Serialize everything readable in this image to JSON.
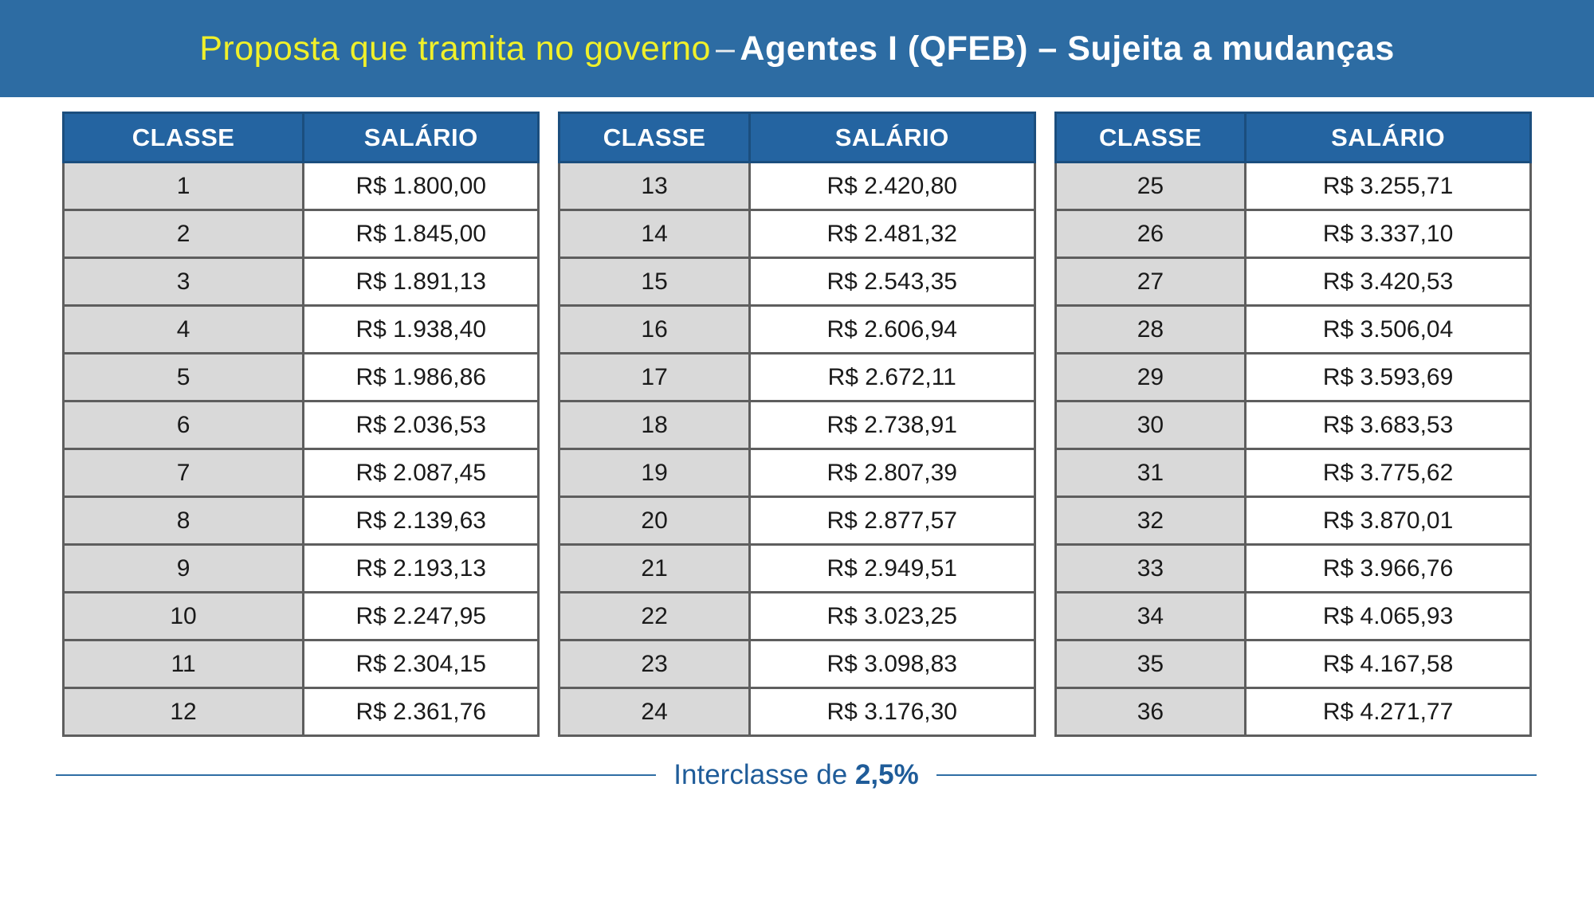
{
  "banner": {
    "title_highlight": "Proposta que tramita no governo",
    "title_dash": "–",
    "title_main": "Agentes I (QFEB) – Sujeita a mudanças",
    "bg_color": "#2D6CA3",
    "highlight_color": "#F0F02A",
    "main_color": "#FFFFFF"
  },
  "tables": [
    {
      "headers": [
        "CLASSE",
        "SALÁRIO"
      ],
      "rows": [
        [
          "1",
          "R$ 1.800,00"
        ],
        [
          "2",
          "R$ 1.845,00"
        ],
        [
          "3",
          "R$ 1.891,13"
        ],
        [
          "4",
          "R$ 1.938,40"
        ],
        [
          "5",
          "R$ 1.986,86"
        ],
        [
          "6",
          "R$ 2.036,53"
        ],
        [
          "7",
          "R$ 2.087,45"
        ],
        [
          "8",
          "R$ 2.139,63"
        ],
        [
          "9",
          "R$ 2.193,13"
        ],
        [
          "10",
          "R$ 2.247,95"
        ],
        [
          "11",
          "R$ 2.304,15"
        ],
        [
          "12",
          "R$ 2.361,76"
        ]
      ]
    },
    {
      "headers": [
        "CLASSE",
        "SALÁRIO"
      ],
      "rows": [
        [
          "13",
          "R$ 2.420,80"
        ],
        [
          "14",
          "R$ 2.481,32"
        ],
        [
          "15",
          "R$ 2.543,35"
        ],
        [
          "16",
          "R$ 2.606,94"
        ],
        [
          "17",
          "R$ 2.672,11"
        ],
        [
          "18",
          "R$ 2.738,91"
        ],
        [
          "19",
          "R$ 2.807,39"
        ],
        [
          "20",
          "R$ 2.877,57"
        ],
        [
          "21",
          "R$ 2.949,51"
        ],
        [
          "22",
          "R$ 3.023,25"
        ],
        [
          "23",
          "R$ 3.098,83"
        ],
        [
          "24",
          "R$ 3.176,30"
        ]
      ]
    },
    {
      "headers": [
        "CLASSE",
        "SALÁRIO"
      ],
      "rows": [
        [
          "25",
          "R$ 3.255,71"
        ],
        [
          "26",
          "R$ 3.337,10"
        ],
        [
          "27",
          "R$ 3.420,53"
        ],
        [
          "28",
          "R$ 3.506,04"
        ],
        [
          "29",
          "R$ 3.593,69"
        ],
        [
          "30",
          "R$ 3.683,53"
        ],
        [
          "31",
          "R$ 3.775,62"
        ],
        [
          "32",
          "R$ 3.870,01"
        ],
        [
          "33",
          "R$ 3.966,76"
        ],
        [
          "34",
          "R$ 4.065,93"
        ],
        [
          "35",
          "R$ 4.167,58"
        ],
        [
          "36",
          "R$ 4.271,77"
        ]
      ]
    }
  ],
  "footer": {
    "label": "Interclasse de ",
    "value": "2,5%",
    "text_color": "#1F5C99",
    "line_color": "#2E6DA4"
  }
}
